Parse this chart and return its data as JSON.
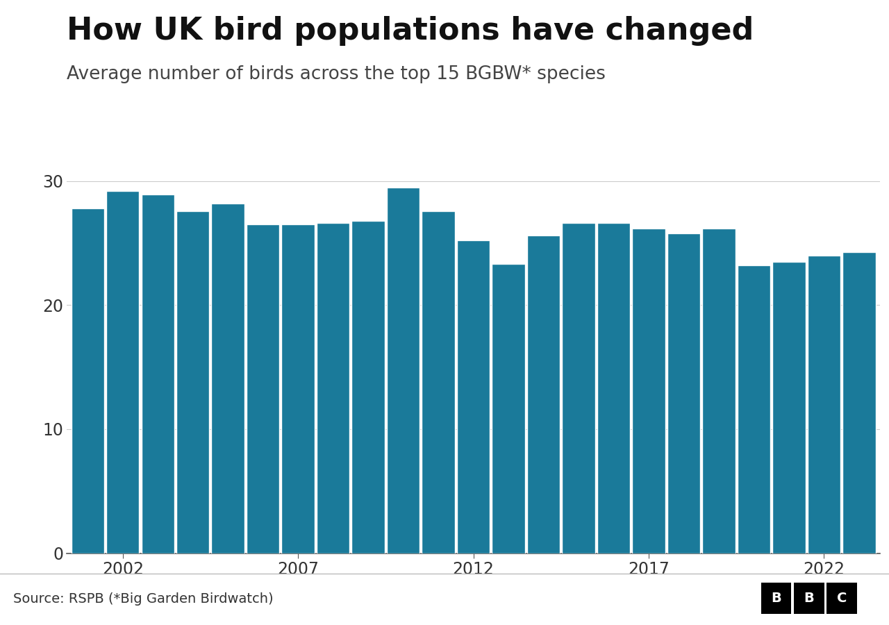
{
  "title": "How UK bird populations have changed",
  "subtitle": "Average number of birds across the top 15 BGBW* species",
  "source": "Source: RSPB (*Big Garden Birdwatch)",
  "bar_color": "#1a7a9a",
  "background_color": "#ffffff",
  "years": [
    2001,
    2002,
    2003,
    2004,
    2005,
    2006,
    2007,
    2008,
    2009,
    2010,
    2011,
    2012,
    2013,
    2014,
    2015,
    2016,
    2017,
    2018,
    2019,
    2020,
    2021,
    2022,
    2023
  ],
  "values": [
    27.8,
    29.2,
    28.9,
    27.6,
    28.2,
    26.5,
    26.5,
    26.6,
    26.8,
    29.5,
    27.6,
    25.2,
    23.3,
    25.6,
    26.6,
    26.6,
    26.2,
    25.8,
    26.2,
    23.2,
    23.5,
    24.0,
    24.3
  ],
  "xtick_years": [
    2002,
    2007,
    2012,
    2017,
    2022
  ],
  "yticks": [
    0,
    10,
    20,
    30
  ],
  "ylim": [
    0,
    32
  ],
  "title_fontsize": 32,
  "subtitle_fontsize": 19,
  "tick_fontsize": 17,
  "source_fontsize": 14,
  "bar_gap": 0.06
}
